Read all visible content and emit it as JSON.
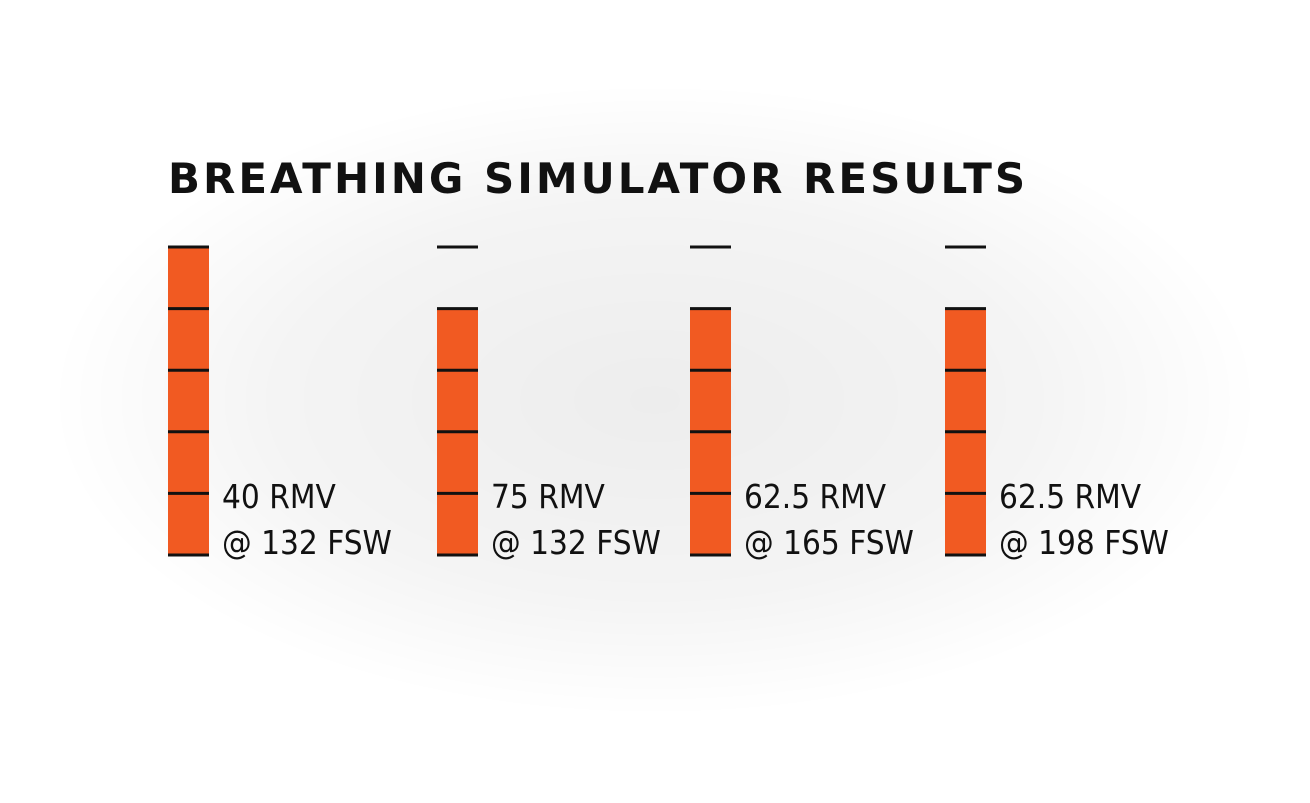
{
  "chart_data": {
    "type": "bar",
    "title": "BREATHING SIMULATOR RESULTS",
    "categories": [
      "40 RMV @ 132 FSW",
      "75 RMV @ 132 FSW",
      "62.5 RMV @ 165 FSW",
      "62.5 RMV @ 198 FSW"
    ],
    "ylim": [
      0,
      5
    ],
    "grid": false,
    "bar_color": "#F15A22",
    "tick_color": "#111111",
    "bars": [
      {
        "value": 5,
        "label_line1": "40 RMV",
        "label_line2": "@ 132 FSW"
      },
      {
        "value": 4,
        "label_line1": "75 RMV",
        "label_line2": "@ 132 FSW"
      },
      {
        "value": 4,
        "label_line1": "62.5 RMV",
        "label_line2": "@ 165 FSW"
      },
      {
        "value": 4,
        "label_line1": "62.5 RMV",
        "label_line2": "@ 198 FSW"
      }
    ]
  }
}
